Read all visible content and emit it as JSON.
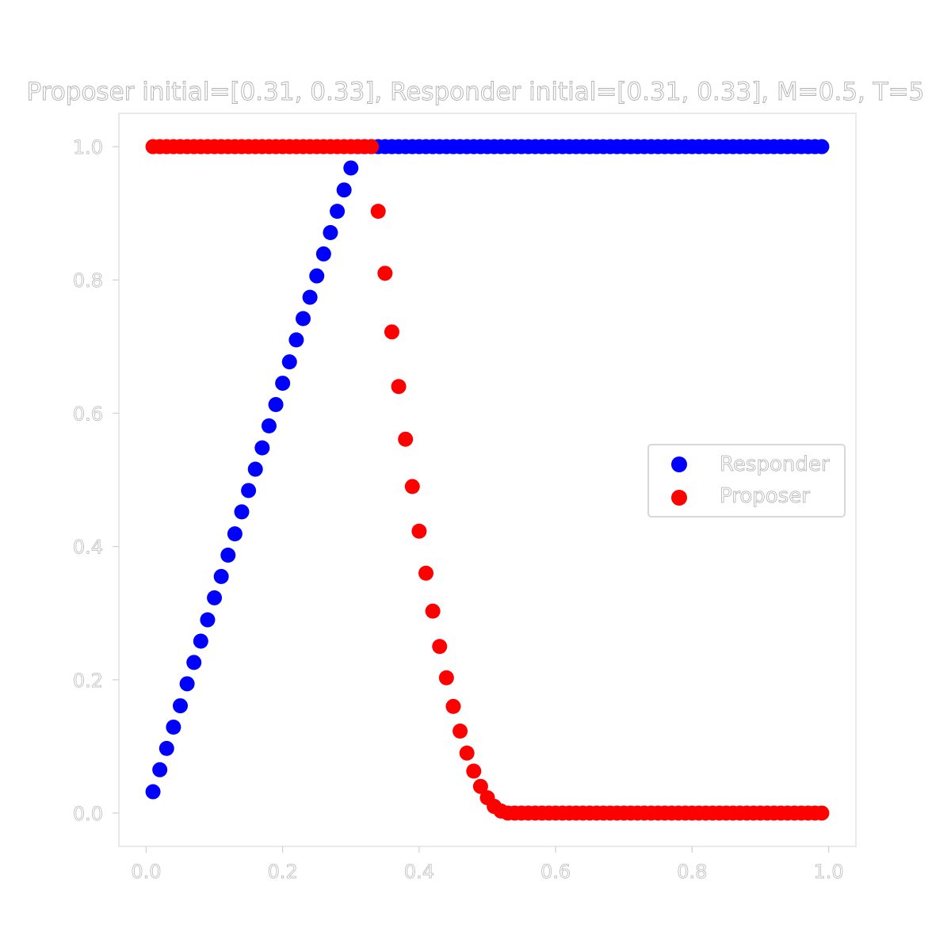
{
  "chart_data": {
    "type": "scatter",
    "title": "Proposer initial=[0.31, 0.33], Responder initial=[0.31, 0.33], M=0.5, T=5",
    "xlabel": "",
    "ylabel": "",
    "xlim": [
      -0.04,
      1.04
    ],
    "ylim": [
      -0.05,
      1.05
    ],
    "x_ticks": [
      "0.0",
      "0.2",
      "0.4",
      "0.6",
      "0.8",
      "1.0"
    ],
    "y_ticks": [
      "0.0",
      "0.2",
      "0.4",
      "0.6",
      "0.8",
      "1.0"
    ],
    "grid": false,
    "legend_position": "center-right",
    "x": [
      0.01,
      0.02,
      0.03,
      0.04,
      0.05,
      0.06,
      0.07,
      0.08,
      0.09,
      0.1,
      0.11,
      0.12,
      0.13,
      0.14,
      0.15,
      0.16,
      0.17,
      0.18,
      0.19,
      0.2,
      0.21,
      0.22,
      0.23,
      0.24,
      0.25,
      0.26,
      0.27,
      0.28,
      0.29,
      0.3,
      0.31,
      0.32,
      0.33,
      0.34,
      0.35,
      0.36,
      0.37,
      0.38,
      0.39,
      0.4,
      0.41,
      0.42,
      0.43,
      0.44,
      0.45,
      0.46,
      0.47,
      0.48,
      0.49,
      0.5,
      0.51,
      0.52,
      0.53,
      0.54,
      0.55,
      0.56,
      0.57,
      0.58,
      0.59,
      0.6,
      0.61,
      0.62,
      0.63,
      0.64,
      0.65,
      0.66,
      0.67,
      0.68,
      0.69,
      0.7,
      0.71,
      0.72,
      0.73,
      0.74,
      0.75,
      0.76,
      0.77,
      0.78,
      0.79,
      0.8,
      0.81,
      0.82,
      0.83,
      0.84,
      0.85,
      0.86,
      0.87,
      0.88,
      0.89,
      0.9,
      0.91,
      0.92,
      0.93,
      0.94,
      0.95,
      0.96,
      0.97,
      0.98,
      0.99
    ],
    "series": [
      {
        "name": "Responder",
        "color": "#0000ff",
        "values": [
          0.032,
          0.065,
          0.097,
          0.129,
          0.161,
          0.194,
          0.226,
          0.258,
          0.29,
          0.323,
          0.355,
          0.387,
          0.419,
          0.452,
          0.484,
          0.516,
          0.548,
          0.581,
          0.613,
          0.645,
          0.677,
          0.71,
          0.742,
          0.774,
          0.806,
          0.839,
          0.871,
          0.903,
          0.935,
          0.968,
          1.0,
          1.0,
          1.0,
          1.0,
          1.0,
          1.0,
          1.0,
          1.0,
          1.0,
          1.0,
          1.0,
          1.0,
          1.0,
          1.0,
          1.0,
          1.0,
          1.0,
          1.0,
          1.0,
          1.0,
          1.0,
          1.0,
          1.0,
          1.0,
          1.0,
          1.0,
          1.0,
          1.0,
          1.0,
          1.0,
          1.0,
          1.0,
          1.0,
          1.0,
          1.0,
          1.0,
          1.0,
          1.0,
          1.0,
          1.0,
          1.0,
          1.0,
          1.0,
          1.0,
          1.0,
          1.0,
          1.0,
          1.0,
          1.0,
          1.0,
          1.0,
          1.0,
          1.0,
          1.0,
          1.0,
          1.0,
          1.0,
          1.0,
          1.0,
          1.0,
          1.0,
          1.0,
          1.0,
          1.0,
          1.0,
          1.0,
          1.0,
          1.0,
          1.0
        ]
      },
      {
        "name": "Proposer",
        "color": "#ff0000",
        "values": [
          1.0,
          1.0,
          1.0,
          1.0,
          1.0,
          1.0,
          1.0,
          1.0,
          1.0,
          1.0,
          1.0,
          1.0,
          1.0,
          1.0,
          1.0,
          1.0,
          1.0,
          1.0,
          1.0,
          1.0,
          1.0,
          1.0,
          1.0,
          1.0,
          1.0,
          1.0,
          1.0,
          1.0,
          1.0,
          1.0,
          1.0,
          1.0,
          1.0,
          0.903,
          0.81,
          0.722,
          0.64,
          0.561,
          0.49,
          0.423,
          0.36,
          0.303,
          0.25,
          0.203,
          0.16,
          0.123,
          0.09,
          0.063,
          0.04,
          0.023,
          0.01,
          0.003,
          0.0,
          0.0,
          0.0,
          0.0,
          0.0,
          0.0,
          0.0,
          0.0,
          0.0,
          0.0,
          0.0,
          0.0,
          0.0,
          0.0,
          0.0,
          0.0,
          0.0,
          0.0,
          0.0,
          0.0,
          0.0,
          0.0,
          0.0,
          0.0,
          0.0,
          0.0,
          0.0,
          0.0,
          0.0,
          0.0,
          0.0,
          0.0,
          0.0,
          0.0,
          0.0,
          0.0,
          0.0,
          0.0,
          0.0,
          0.0,
          0.0,
          0.0,
          0.0,
          0.0,
          0.0,
          0.0,
          0.0
        ]
      }
    ]
  }
}
